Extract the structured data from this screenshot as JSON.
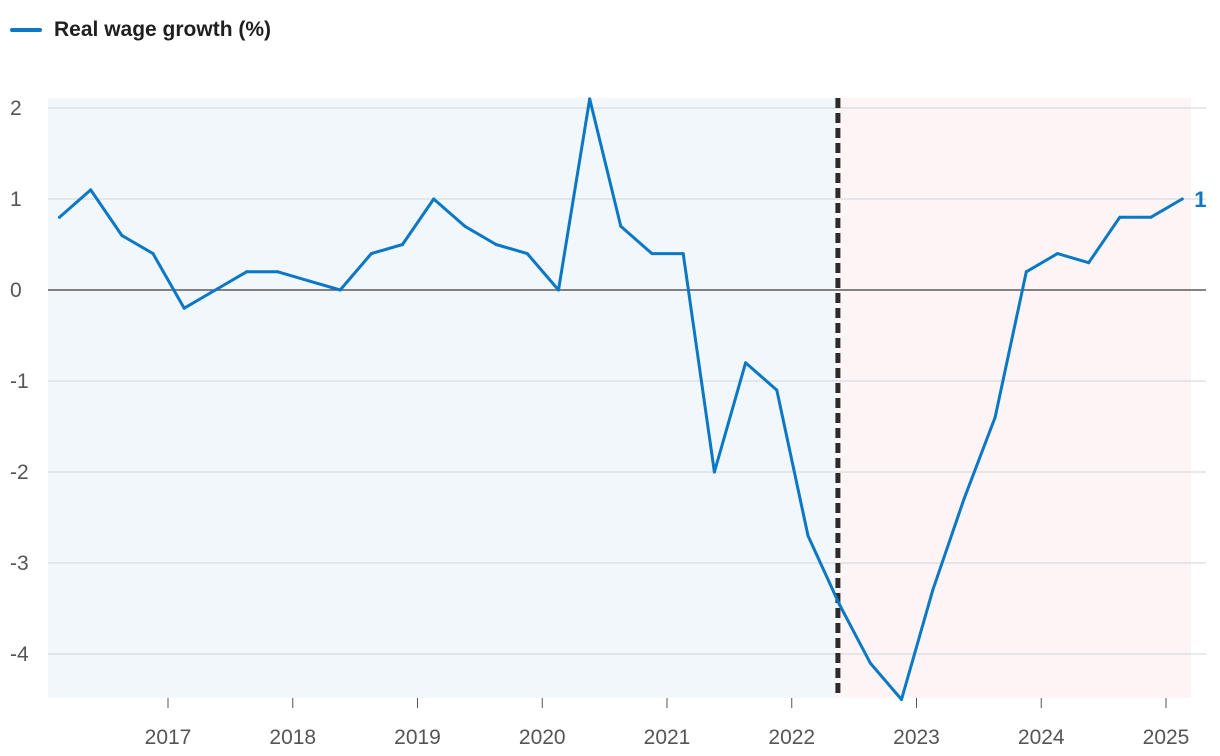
{
  "legend": {
    "label": "Real wage growth (%)"
  },
  "colors": {
    "series": "#0a78c4",
    "shade_before": "#f2f7fb",
    "shade_after": "#fdf4f5",
    "grid": "#cfd4d8",
    "zero_line": "#5a5a5a",
    "divider": "#2b2b2b"
  },
  "chart_data": {
    "type": "line",
    "title": "",
    "xlabel": "",
    "ylabel": "",
    "legend_position": "top-left",
    "grid": true,
    "ylim": [
      -4.5,
      2.1
    ],
    "xlim": [
      2016.0,
      2025.35
    ],
    "y_ticks": [
      2,
      1,
      0,
      -1,
      -2,
      -3,
      -4
    ],
    "y_tick_labels": [
      "2",
      "1",
      "0",
      "-1",
      "-2",
      "-3",
      "-4"
    ],
    "x_ticks": [
      2017,
      2018,
      2019,
      2020,
      2021,
      2022,
      2023,
      2024,
      2025
    ],
    "x_tick_labels": [
      "2017",
      "2018",
      "2019",
      "2020",
      "2021",
      "2022",
      "2023",
      "2024",
      "2025"
    ],
    "shaded_regions": [
      {
        "from": 2016.0,
        "to": 2022.37
      },
      {
        "from": 2022.37,
        "to": 2025.2
      }
    ],
    "divider_x": 2022.37,
    "end_label": "1",
    "series": [
      {
        "name": "Real wage growth (%)",
        "x": [
          2016.13,
          2016.38,
          2016.63,
          2016.88,
          2017.13,
          2017.38,
          2017.63,
          2017.88,
          2018.13,
          2018.38,
          2018.63,
          2018.88,
          2019.13,
          2019.38,
          2019.63,
          2019.88,
          2020.13,
          2020.38,
          2020.63,
          2020.88,
          2021.13,
          2021.38,
          2021.63,
          2021.88,
          2022.13,
          2022.38,
          2022.63,
          2022.88,
          2023.13,
          2023.38,
          2023.63,
          2023.88,
          2024.13,
          2024.38,
          2024.63,
          2024.88,
          2025.13
        ],
        "values": [
          0.8,
          1.1,
          0.6,
          0.4,
          -0.2,
          0.0,
          0.2,
          0.2,
          0.1,
          0.0,
          0.4,
          0.5,
          1.0,
          0.7,
          0.5,
          0.4,
          0.0,
          2.1,
          0.7,
          0.4,
          0.4,
          -2.0,
          -0.8,
          -1.1,
          -2.7,
          -3.45,
          -4.1,
          -4.5,
          -3.3,
          -2.3,
          -1.4,
          0.2,
          0.4,
          0.3,
          0.8,
          0.8,
          1.0
        ]
      }
    ]
  }
}
